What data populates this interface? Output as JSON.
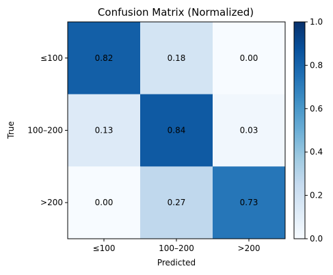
{
  "chart_data": {
    "type": "heatmap",
    "title": "Confusion Matrix (Normalized)",
    "xlabel": "Predicted",
    "ylabel": "True",
    "x_categories": [
      "≤100",
      "100–200",
      ">200"
    ],
    "y_categories": [
      "≤100",
      "100–200",
      ">200"
    ],
    "values": [
      [
        0.82,
        0.18,
        0.0
      ],
      [
        0.13,
        0.84,
        0.03
      ],
      [
        0.0,
        0.27,
        0.73
      ]
    ],
    "cell_labels": [
      [
        "0.82",
        "0.18",
        "0.00"
      ],
      [
        "0.13",
        "0.84",
        "0.03"
      ],
      [
        "0.00",
        "0.27",
        "0.73"
      ]
    ],
    "colormap": "Blues",
    "color_range": [
      0,
      1
    ],
    "colorbar_ticks": [
      0.0,
      0.2,
      0.4,
      0.6,
      0.8,
      1.0
    ],
    "colorbar_tick_labels": [
      "0.0",
      "0.2",
      "0.4",
      "0.6",
      "0.8",
      "1.0"
    ],
    "grid": false
  }
}
